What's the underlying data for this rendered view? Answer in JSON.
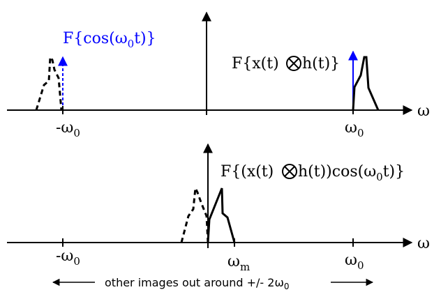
{
  "top_panel": {
    "cos_label": "F{cos(ω",
    "cos_sub": "0",
    "cos_end": "t)}",
    "conv_label_pre": "F{x(t)",
    "conv_label_post": "h(t)}",
    "axis_label": "ω",
    "tick_neg": "-ω",
    "tick_neg_sub": "0",
    "tick_pos": "ω",
    "tick_pos_sub": "0"
  },
  "bottom_panel": {
    "mod_label_pre": "F{(x(t)",
    "mod_label_mid": "h(t))cos(ω",
    "mod_label_sub": "0",
    "mod_label_end": "t)}",
    "axis_label": "ω",
    "tick_neg": "-ω",
    "tick_neg_sub": "0",
    "tick_m": "ω",
    "tick_m_sub": "m",
    "tick_pos": "ω",
    "tick_pos_sub": "0"
  },
  "footnote": {
    "text": "other images out around +/- 2ω",
    "sub": "0"
  },
  "colors": {
    "ink": "#000000",
    "impulse": "#0000ff"
  }
}
